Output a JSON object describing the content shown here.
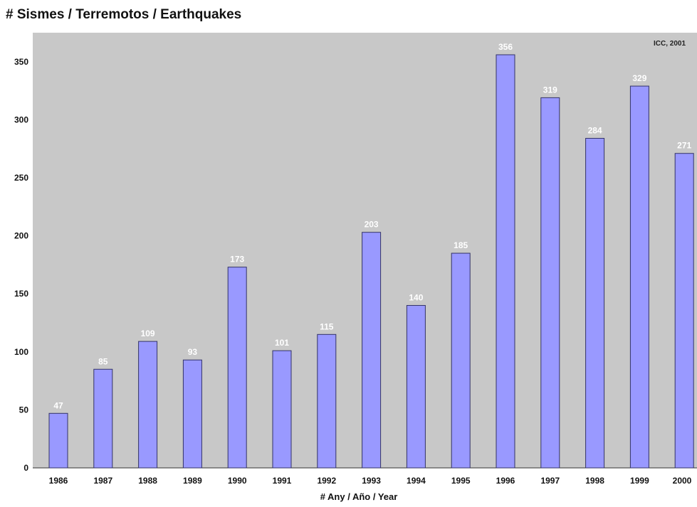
{
  "colors": {
    "plot_background": "#c8c8c8",
    "bar_fill": "#9999ff",
    "bar_stroke": "#333366",
    "data_label": "#ffffff"
  },
  "chart_data": {
    "type": "bar",
    "title": "# Sismes / Terremotos / Earthquakes",
    "credit": "ICC, 2001",
    "xlabel": "# Any / Año / Year",
    "ylabel": "",
    "categories": [
      "1986",
      "1987",
      "1988",
      "1989",
      "1990",
      "1991",
      "1992",
      "1993",
      "1994",
      "1995",
      "1996",
      "1997",
      "1998",
      "1999",
      "2000"
    ],
    "values": [
      47,
      85,
      109,
      93,
      173,
      101,
      115,
      203,
      140,
      185,
      356,
      319,
      284,
      329,
      271
    ],
    "ylim": [
      0,
      375
    ],
    "yticks": [
      0,
      50,
      100,
      150,
      200,
      250,
      300,
      350
    ],
    "grid": false,
    "legend": "none"
  }
}
